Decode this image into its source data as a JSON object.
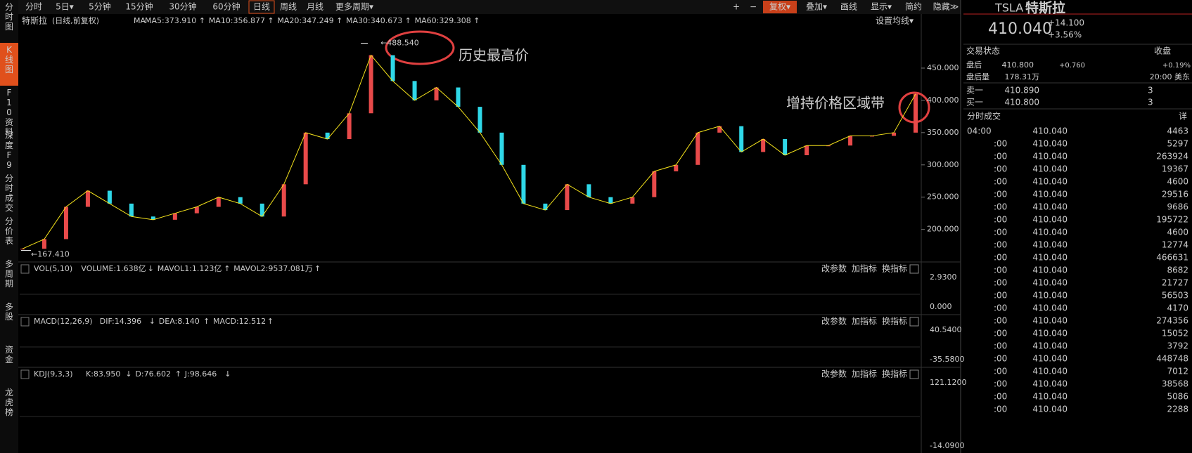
{
  "sidebar": [
    "分时图",
    "K线图",
    "F10资料",
    "深度F9",
    "分时成交",
    "分价表",
    "多周期",
    "多股",
    "资金",
    "龙虎榜"
  ],
  "tabs": [
    "分时",
    "5日▾",
    "5分钟",
    "15分钟",
    "30分钟",
    "60分钟",
    "日线",
    "周线",
    "月线",
    "更多周期▾"
  ],
  "toolbar": [
    "+",
    "−",
    "复权▾",
    "叠加▾",
    "画线",
    "显示▾",
    "简约",
    "隐藏≫"
  ],
  "kline": {
    "name": "特斯拉",
    "mode": "(日线,前复权)",
    "ma_label": "MA",
    "ma": [
      {
        "text": "MA5:373.910",
        "arrow": "↑",
        "color": "#ffffff"
      },
      {
        "text": "MA10:356.877",
        "arrow": "↑",
        "color": "#f5e31b"
      },
      {
        "text": "MA20:347.249",
        "arrow": "↑",
        "color": "#e040e0"
      },
      {
        "text": "MA30:340.673",
        "arrow": "↑",
        "color": "#33dd33"
      },
      {
        "text": "MA60:329.308",
        "arrow": "↑",
        "color": "#cccccc"
      }
    ],
    "settings": "设置均线▾",
    "ylim": [
      155,
      493.5
    ],
    "yticks": [
      {
        "value": 450,
        "label": "450.000"
      },
      {
        "value": 400,
        "label": "400.000"
      },
      {
        "value": 350,
        "label": "350.000"
      },
      {
        "value": 300,
        "label": "300.000"
      },
      {
        "value": 250,
        "label": "250.000"
      },
      {
        "value": 200,
        "label": "200.000"
      }
    ],
    "high": {
      "value": 488.54,
      "label": "←488.540"
    },
    "low": {
      "value": 167.41,
      "label": "←167.410"
    },
    "close_estimates": [
      170,
      185,
      235,
      260,
      240,
      220,
      215,
      225,
      235,
      250,
      240,
      220,
      270,
      350,
      340,
      380,
      470,
      430,
      400,
      420,
      390,
      350,
      300,
      240,
      230,
      270,
      250,
      240,
      250,
      290,
      300,
      350,
      360,
      320,
      340,
      315,
      330,
      330,
      345,
      345,
      350,
      410
    ]
  },
  "annotations": [
    "历史最高价",
    "增持价格区域带"
  ],
  "buttons": [
    "改参数",
    "加指标",
    "换指标"
  ],
  "indicators": [
    {
      "name": "VOL(5,10)",
      "items": [
        {
          "text": "VOLUME:1.638亿",
          "arrow": "↓",
          "color": "#ffffff"
        },
        {
          "text": "MAVOL1:1.123亿",
          "arrow": "↑",
          "color": "#f5e31b"
        },
        {
          "text": "MAVOL2:9537.081万",
          "arrow": "↑",
          "color": "#e040e0"
        }
      ],
      "axis_top": "2.9300",
      "axis_bottom": "0.000"
    },
    {
      "name": "MACD(12,26,9)",
      "items": [
        {
          "text": "DIF:14.396",
          "arrow": "↓",
          "color": "#ffffff"
        },
        {
          "text": "DEA:8.140",
          "arrow": "↑",
          "color": "#f5e31b"
        },
        {
          "text": "MACD:12.512",
          "arrow": "↑",
          "color": "#e040e0"
        }
      ],
      "axis_top": "40.5400",
      "axis_bottom": "-35.5800"
    },
    {
      "name": "KDJ(9,3,3)",
      "items": [
        {
          "text": "K:83.950",
          "arrow": "↓",
          "color": "#ffffff"
        },
        {
          "text": "D:76.602",
          "arrow": "↑",
          "color": "#f5e31b"
        },
        {
          "text": "J:98.646",
          "arrow": "↓",
          "color": "#e040e0"
        }
      ],
      "axis_top": "121.1200",
      "axis_bottom": "-14.0900"
    }
  ],
  "quote": {
    "symbol": "TSLA",
    "name": "特斯拉",
    "price": "410.040",
    "change": "+14.100",
    "pct": "+3.56%",
    "status_label": "交易状态",
    "status": "收盘",
    "after_label": "盘后",
    "after_price": "410.800",
    "after_change": "+0.760",
    "after_pct": "+0.19%",
    "after_vol_label": "盘后量",
    "after_vol": "178.31万",
    "time": "20:00 美东",
    "ask_label": "卖一",
    "ask": "410.890",
    "ask_vol": "3",
    "bid_label": "买一",
    "bid": "410.800",
    "bid_vol": "3"
  },
  "trades": {
    "header": "分时成交",
    "detail": "详",
    "rows": [
      [
        "04:00",
        "410.040",
        "4463"
      ],
      [
        ":00",
        "410.040",
        "5297"
      ],
      [
        ":00",
        "410.040",
        "263924"
      ],
      [
        ":00",
        "410.040",
        "19367"
      ],
      [
        ":00",
        "410.040",
        "4600"
      ],
      [
        ":00",
        "410.040",
        "29516"
      ],
      [
        ":00",
        "410.040",
        "9686"
      ],
      [
        ":00",
        "410.040",
        "195722"
      ],
      [
        ":00",
        "410.040",
        "4600"
      ],
      [
        ":00",
        "410.040",
        "12774"
      ],
      [
        ":00",
        "410.040",
        "466631"
      ],
      [
        ":00",
        "410.040",
        "8682"
      ],
      [
        ":00",
        "410.040",
        "21727"
      ],
      [
        ":00",
        "410.040",
        "56503"
      ],
      [
        ":00",
        "410.040",
        "4170"
      ],
      [
        ":00",
        "410.040",
        "274356"
      ],
      [
        ":00",
        "410.040",
        "15052"
      ],
      [
        ":00",
        "410.040",
        "3792"
      ],
      [
        ":00",
        "410.040",
        "448748"
      ],
      [
        ":00",
        "410.040",
        "7012"
      ],
      [
        ":00",
        "410.040",
        "38568"
      ],
      [
        ":00",
        "410.040",
        "5086"
      ],
      [
        ":00",
        "410.040",
        "2288"
      ]
    ]
  }
}
